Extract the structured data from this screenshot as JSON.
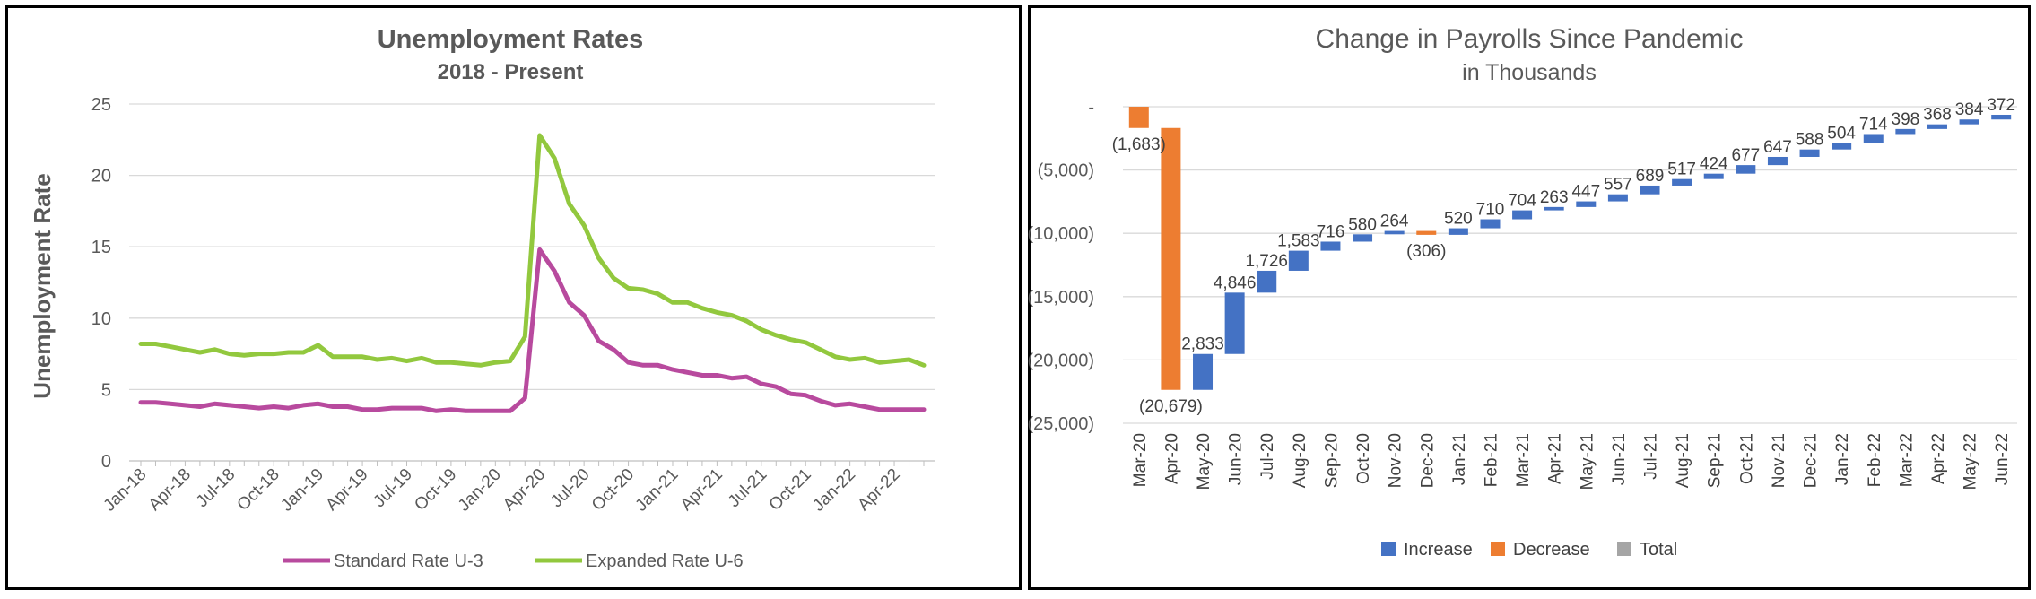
{
  "chart_data": [
    {
      "type": "line",
      "title": "Unemployment Rates",
      "subtitle": "2018 - Present",
      "ylabel": "Unemployment Rate",
      "xlabel": "",
      "ylim": [
        0,
        25
      ],
      "yticks": [
        0,
        5,
        10,
        15,
        20,
        25
      ],
      "grid": true,
      "legend": "bottom",
      "x": [
        "Jan-18",
        "Feb-18",
        "Mar-18",
        "Apr-18",
        "May-18",
        "Jun-18",
        "Jul-18",
        "Aug-18",
        "Sep-18",
        "Oct-18",
        "Nov-18",
        "Dec-18",
        "Jan-19",
        "Feb-19",
        "Mar-19",
        "Apr-19",
        "May-19",
        "Jun-19",
        "Jul-19",
        "Aug-19",
        "Sep-19",
        "Oct-19",
        "Nov-19",
        "Dec-19",
        "Jan-20",
        "Feb-20",
        "Mar-20",
        "Apr-20",
        "May-20",
        "Jun-20",
        "Jul-20",
        "Aug-20",
        "Sep-20",
        "Oct-20",
        "Nov-20",
        "Dec-20",
        "Jan-21",
        "Feb-21",
        "Mar-21",
        "Apr-21",
        "May-21",
        "Jun-21",
        "Jul-21",
        "Aug-21",
        "Sep-21",
        "Oct-21",
        "Nov-21",
        "Dec-21",
        "Jan-22",
        "Feb-22",
        "Mar-22",
        "Apr-22",
        "May-22",
        "Jun-22"
      ],
      "xtick_labels": [
        "Jan-18",
        "Apr-18",
        "Jul-18",
        "Oct-18",
        "Jan-19",
        "Apr-19",
        "Jul-19",
        "Oct-19",
        "Jan-20",
        "Apr-20",
        "Jul-20",
        "Oct-20",
        "Jan-21",
        "Apr-21",
        "Jul-21",
        "Oct-21",
        "Jan-22",
        "Apr-22"
      ],
      "series": [
        {
          "name": "Standard Rate U-3",
          "color": "#B84A9E",
          "values": [
            4.1,
            4.1,
            4.0,
            3.9,
            3.8,
            4.0,
            3.9,
            3.8,
            3.7,
            3.8,
            3.7,
            3.9,
            4.0,
            3.8,
            3.8,
            3.6,
            3.6,
            3.7,
            3.7,
            3.7,
            3.5,
            3.6,
            3.5,
            3.5,
            3.5,
            3.5,
            4.4,
            14.8,
            13.3,
            11.1,
            10.2,
            8.4,
            7.8,
            6.9,
            6.7,
            6.7,
            6.4,
            6.2,
            6.0,
            6.0,
            5.8,
            5.9,
            5.4,
            5.2,
            4.7,
            4.6,
            4.2,
            3.9,
            4.0,
            3.8,
            3.6,
            3.6,
            3.6,
            3.6
          ]
        },
        {
          "name": "Expanded Rate U-6",
          "color": "#92C83E",
          "values": [
            8.2,
            8.2,
            8.0,
            7.8,
            7.6,
            7.8,
            7.5,
            7.4,
            7.5,
            7.5,
            7.6,
            7.6,
            8.1,
            7.3,
            7.3,
            7.3,
            7.1,
            7.2,
            7.0,
            7.2,
            6.9,
            6.9,
            6.8,
            6.7,
            6.9,
            7.0,
            8.7,
            22.8,
            21.2,
            18.0,
            16.5,
            14.2,
            12.8,
            12.1,
            12.0,
            11.7,
            11.1,
            11.1,
            10.7,
            10.4,
            10.2,
            9.8,
            9.2,
            8.8,
            8.5,
            8.3,
            7.8,
            7.3,
            7.1,
            7.2,
            6.9,
            7.0,
            7.1,
            6.7
          ]
        }
      ]
    },
    {
      "type": "waterfall",
      "title": "Change in Payrolls Since Pandemic",
      "subtitle": "in Thousands",
      "ylim": [
        -25000,
        0
      ],
      "yticks": [
        0,
        -5000,
        -10000,
        -15000,
        -20000,
        -25000
      ],
      "ytick_labels": [
        "-",
        "(5,000)",
        "(10,000)",
        "(15,000)",
        "(20,000)",
        "(25,000)"
      ],
      "grid": true,
      "legend": "bottom",
      "categories": [
        "Mar-20",
        "Apr-20",
        "May-20",
        "Jun-20",
        "Jul-20",
        "Aug-20",
        "Sep-20",
        "Oct-20",
        "Nov-20",
        "Dec-20",
        "Jan-21",
        "Feb-21",
        "Mar-21",
        "Apr-21",
        "May-21",
        "Jun-21",
        "Jul-21",
        "Aug-21",
        "Sep-21",
        "Oct-21",
        "Nov-21",
        "Dec-21",
        "Jan-22",
        "Feb-22",
        "Mar-22",
        "Apr-22",
        "May-22",
        "Jun-22"
      ],
      "values": [
        -1683,
        -20679,
        2833,
        4846,
        1726,
        1583,
        716,
        580,
        264,
        -306,
        520,
        710,
        704,
        263,
        447,
        557,
        689,
        517,
        424,
        677,
        647,
        588,
        504,
        714,
        398,
        368,
        384,
        372
      ],
      "data_labels": [
        "(1,683)",
        "(20,679)",
        "2,833",
        "4,846",
        "1,726",
        "1,583",
        "716",
        "580",
        "264",
        "(306)",
        "520",
        "710",
        "704",
        "263",
        "447",
        "557",
        "689",
        "517",
        "424",
        "677",
        "647",
        "588",
        "504",
        "714",
        "398",
        "368",
        "384",
        "372"
      ],
      "legend_items": [
        {
          "name": "Increase",
          "color": "#4472C4"
        },
        {
          "name": "Decrease",
          "color": "#ED7D31"
        },
        {
          "name": "Total",
          "color": "#A5A5A5"
        }
      ]
    }
  ]
}
